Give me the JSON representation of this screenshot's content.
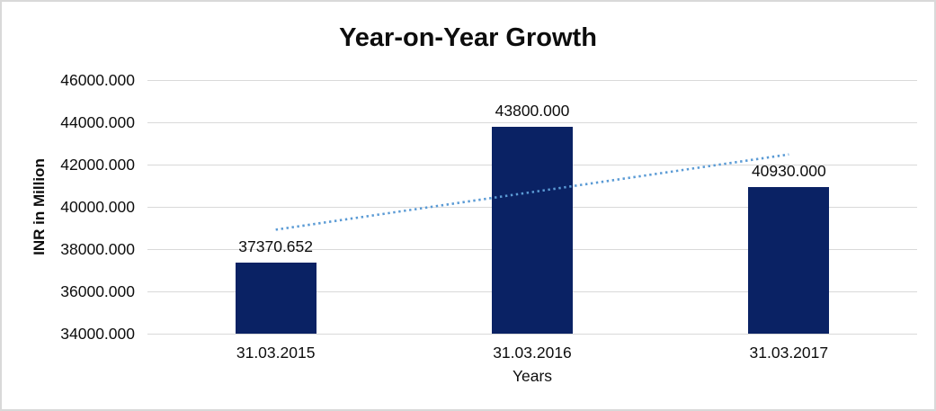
{
  "chart_data": {
    "type": "bar",
    "title": "Year-on-Year Growth",
    "categories": [
      "31.03.2015",
      "31.03.2016",
      "31.03.2017"
    ],
    "values": [
      37370.652,
      43800.0,
      40930.0
    ],
    "value_labels": [
      "37370.652",
      "43800.000",
      "40930.000"
    ],
    "xlabel": "Years",
    "ylabel": "INR in Million",
    "ylim": [
      34000,
      46000
    ],
    "ytick_step": 2000,
    "ytick_labels": [
      "46000.000",
      "44000.000",
      "42000.000",
      "40000.000",
      "38000.000",
      "36000.000",
      "34000.000"
    ],
    "ytick_values": [
      46000,
      44000,
      42000,
      40000,
      38000,
      36000,
      34000
    ],
    "grid": true,
    "legend": "none",
    "bar_color": "#0a2264",
    "gridline_color": "#d9d9d9",
    "trendline": {
      "type": "linear",
      "style": "dotted",
      "color": "#5b9bd5",
      "start_value": 38920,
      "end_value": 42480
    }
  }
}
